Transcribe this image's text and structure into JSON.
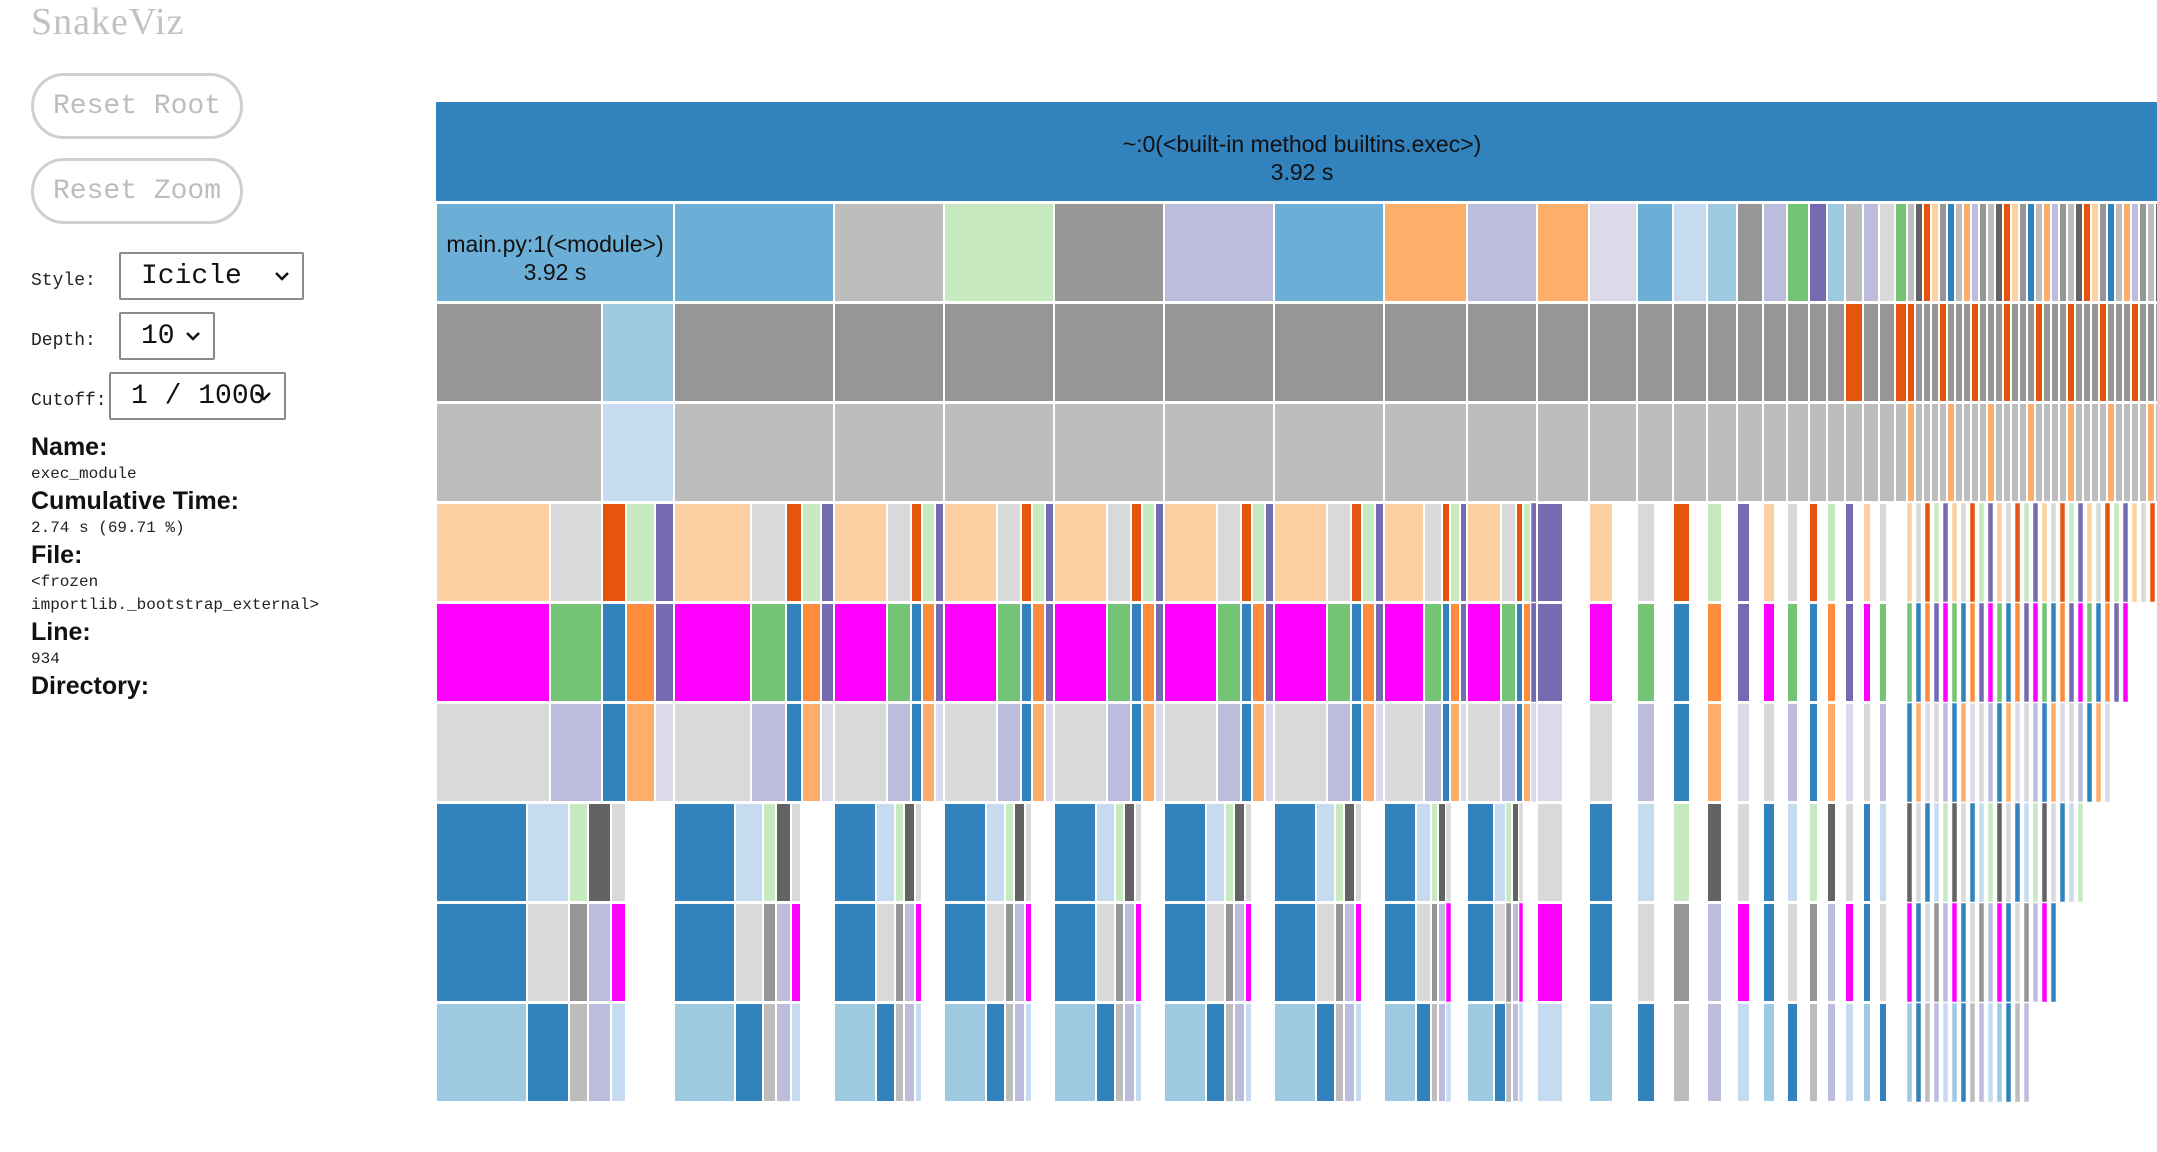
{
  "app": {
    "title": "SnakeViz"
  },
  "controls": {
    "reset_root_label": "Reset Root",
    "reset_zoom_label": "Reset Zoom",
    "style_label": "Style:",
    "style_value": "Icicle",
    "depth_label": "Depth:",
    "depth_value": "10",
    "cutoff_label": "Cutoff:",
    "cutoff_value": "1 / 1000"
  },
  "info": {
    "name_label": "Name:",
    "name_value": "exec_module",
    "cumtime_label": "Cumulative Time:",
    "cumtime_value": "2.74 s (69.71 %)",
    "file_label": "File:",
    "file_value_line1": "<frozen",
    "file_value_line2": "importlib._bootstrap_external>",
    "line_label": "Line:",
    "line_value": "934",
    "directory_label": "Directory:"
  },
  "icicle": {
    "root": {
      "name": "~:0(<built-in method builtins.exec>)",
      "time": "3.92 s",
      "color": "#3182bd"
    },
    "module": {
      "name": "main.py:1(<module>)",
      "time": "3.92 s",
      "color": "#6baed6"
    },
    "colors": {
      "blue": "#3182bd",
      "light_blue": "#6baed6",
      "pale_blue": "#9ecae1",
      "paler_blue": "#c6dbef",
      "gray": "#969696",
      "light_gray": "#bdbdbd",
      "lighter_gray": "#d9d9d9",
      "dark_gray": "#636363",
      "peach": "#fdd0a2",
      "orange": "#fdae6b",
      "dark_orange": "#e6550d",
      "mid_orange": "#fd8d3c",
      "pale_green": "#c7e9c0",
      "green": "#74c476",
      "lavender": "#bcbddc",
      "pale_lavender": "#dadaeb",
      "purple": "#756bb1",
      "magenta": "#ff00ff"
    }
  }
}
